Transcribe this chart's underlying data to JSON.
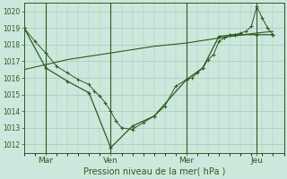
{
  "background_color": "#cce8dc",
  "line_color": "#2d5a1e",
  "grid_color": "#a8c8b4",
  "xlabel": "Pression niveau de la mer( hPa )",
  "ylim": [
    1011.5,
    1020.5
  ],
  "yticks": [
    1012,
    1013,
    1014,
    1015,
    1016,
    1017,
    1018,
    1019,
    1020
  ],
  "xlim": [
    0,
    240
  ],
  "xtick_positions": [
    20,
    80,
    150,
    215
  ],
  "xtick_labels": [
    "Mar",
    "Ven",
    "Mer",
    "Jeu"
  ],
  "vline_positions": [
    20,
    80,
    150,
    215
  ],
  "series1_x": [
    0,
    10,
    20,
    30,
    40,
    50,
    60,
    65,
    70,
    75,
    80,
    85,
    90,
    100,
    110,
    120,
    130,
    140,
    150,
    155,
    160,
    165,
    170,
    175,
    180,
    185,
    190,
    195,
    200,
    205,
    210,
    215,
    220,
    225,
    230
  ],
  "series1_y": [
    1019.0,
    1018.2,
    1017.5,
    1016.7,
    1016.3,
    1015.9,
    1015.6,
    1015.2,
    1014.9,
    1014.5,
    1014.0,
    1013.4,
    1013.0,
    1012.9,
    1013.3,
    1013.7,
    1014.3,
    1015.5,
    1015.9,
    1016.0,
    1016.3,
    1016.6,
    1017.1,
    1017.4,
    1018.2,
    1018.4,
    1018.6,
    1018.6,
    1018.7,
    1018.8,
    1019.1,
    1020.3,
    1019.6,
    1019.0,
    1018.6
  ],
  "series2_x": [
    0,
    20,
    40,
    60,
    80,
    100,
    120,
    150,
    165,
    180,
    195,
    215,
    230
  ],
  "series2_y": [
    1019.0,
    1016.6,
    1015.8,
    1015.1,
    1011.8,
    1013.1,
    1013.7,
    1015.9,
    1016.6,
    1018.5,
    1018.6,
    1018.6,
    1018.6
  ],
  "series3_x": [
    0,
    40,
    80,
    120,
    150,
    180,
    215,
    230
  ],
  "series3_y": [
    1016.5,
    1017.1,
    1017.5,
    1017.9,
    1018.1,
    1018.4,
    1018.7,
    1018.8
  ]
}
